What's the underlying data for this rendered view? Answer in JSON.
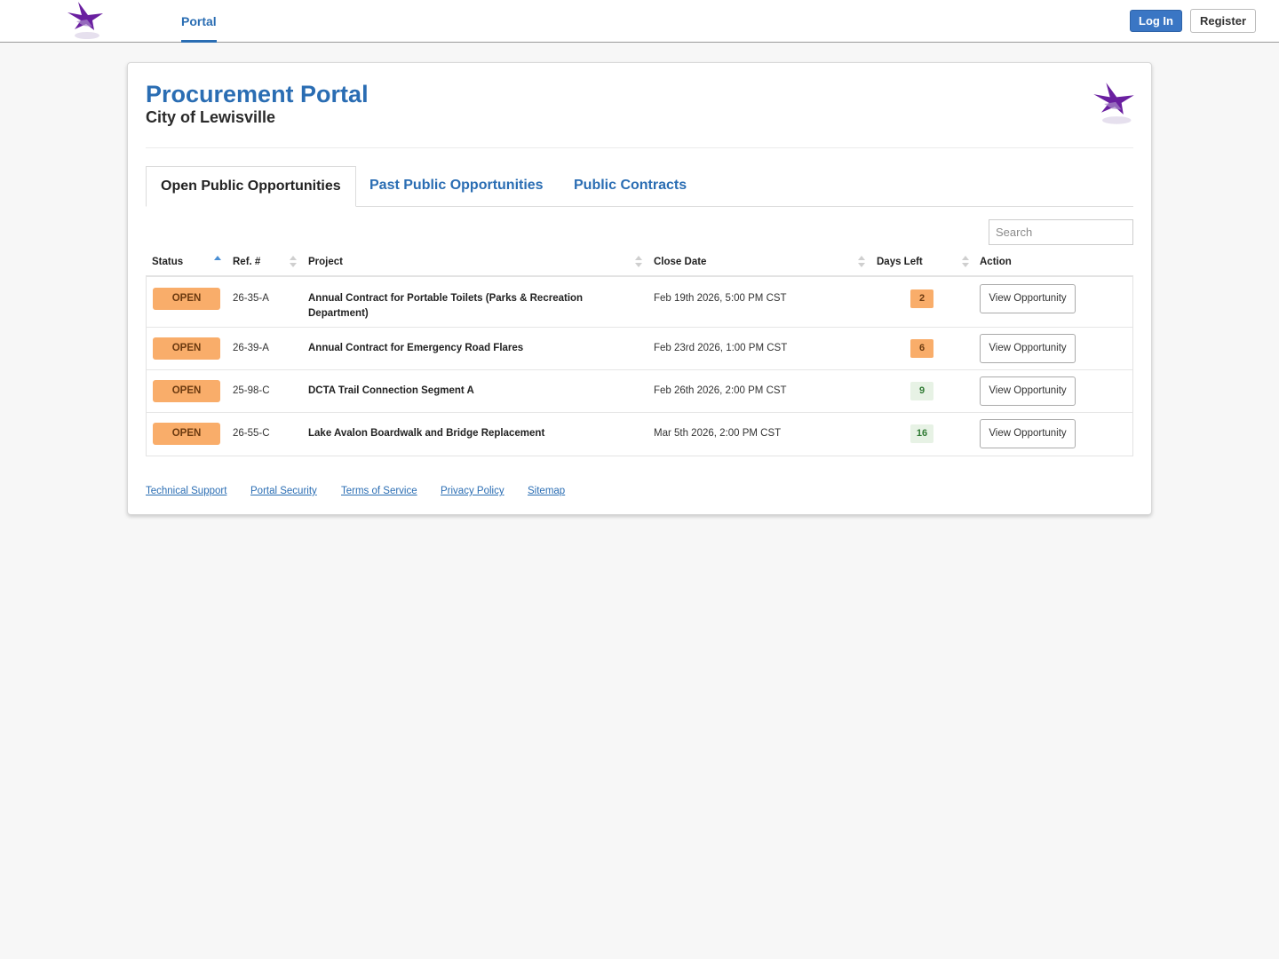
{
  "topnav": {
    "logo_icon": "bird-logo-icon",
    "portal_tab": "Portal",
    "login_label": "Log In",
    "register_label": "Register"
  },
  "header": {
    "title": "Procurement Portal",
    "subtitle": "City of Lewisville"
  },
  "tabs": [
    {
      "label": "Open Public Opportunities",
      "active": true
    },
    {
      "label": "Past Public Opportunities",
      "active": false
    },
    {
      "label": "Public Contracts",
      "active": false
    }
  ],
  "search": {
    "placeholder": "Search",
    "value": ""
  },
  "table": {
    "columns": [
      "Status",
      "Ref. #",
      "Project",
      "Close Date",
      "Days Left",
      "Action"
    ],
    "sorted_column": "Status",
    "sort_direction": "ascending",
    "rows": [
      {
        "status": "OPEN",
        "ref": "26-35-A",
        "project": "Annual Contract for Portable Toilets (Parks & Recreation Department)",
        "close_date": "Feb 19th 2026, 5:00 PM CST",
        "days_left": "2",
        "days_color": "#f9ad6a",
        "action": "View Opportunity"
      },
      {
        "status": "OPEN",
        "ref": "26-39-A",
        "project": "Annual Contract for Emergency Road Flares",
        "close_date": "Feb 23rd 2026, 1:00 PM CST",
        "days_left": "6",
        "days_color": "#f9ad6a",
        "action": "View Opportunity"
      },
      {
        "status": "OPEN",
        "ref": "25-98-C",
        "project": "DCTA Trail Connection Segment A",
        "close_date": "Feb 26th 2026, 2:00 PM CST",
        "days_left": "9",
        "days_color": "#e7f2e5",
        "action": "View Opportunity"
      },
      {
        "status": "OPEN",
        "ref": "26-55-C",
        "project": "Lake Avalon Boardwalk and Bridge Replacement",
        "close_date": "Mar 5th 2026, 2:00 PM CST",
        "days_left": "16",
        "days_color": "#e7f2e5",
        "action": "View Opportunity"
      }
    ]
  },
  "footer": {
    "links": [
      "Technical Support",
      "Portal Security",
      "Terms of Service",
      "Privacy Policy",
      "Sitemap"
    ]
  },
  "colors": {
    "accent": "#2a6db3",
    "login_button": "#3a76c4",
    "open_badge": "#f9ad6a",
    "logo_purple": "#6a1fa0"
  }
}
